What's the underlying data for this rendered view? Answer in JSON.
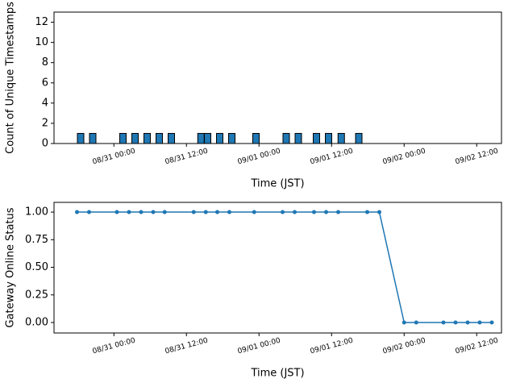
{
  "chart_data": [
    {
      "type": "bar",
      "ylabel": "Count of Unique Timestamps",
      "xlabel": "Time (JST)",
      "color": "#1f77b4",
      "x": [
        -5.5,
        -3.5,
        1.5,
        3.5,
        5.5,
        7.5,
        9.5,
        14.4,
        15.5,
        17.5,
        19.5,
        23.5,
        28.5,
        30.5,
        33.5,
        35.5,
        37.6,
        40.5
      ],
      "values": [
        1,
        1,
        1,
        1,
        1,
        1,
        1,
        1,
        1,
        1,
        1,
        1,
        1,
        1,
        1,
        1,
        1,
        1
      ],
      "xlim": [
        -9.9,
        64.1
      ],
      "xticks": [
        {
          "value": 0,
          "label": "08/31 00:00"
        },
        {
          "value": 12,
          "label": "08/31 12:00"
        },
        {
          "value": 24,
          "label": "09/01 00:00"
        },
        {
          "value": 36,
          "label": "09/01 12:00"
        },
        {
          "value": 48,
          "label": "09/02 00:00"
        },
        {
          "value": 60,
          "label": "09/02 12:00"
        }
      ],
      "ylim": [
        0,
        13
      ],
      "yticks": [
        0,
        2,
        4,
        6,
        8,
        10,
        12
      ]
    },
    {
      "type": "line",
      "ylabel": "Gateway Online Status",
      "xlabel": "Time (JST)",
      "color": "#1f77b4",
      "x": [
        -6.1,
        -4.1,
        0.5,
        2.5,
        4.5,
        6.5,
        8.4,
        13.2,
        15.2,
        17.1,
        19.1,
        23.2,
        27.9,
        29.9,
        33.1,
        35.1,
        37.1,
        41.9,
        43.9,
        48,
        50,
        54.5,
        56.5,
        58.5,
        60.5,
        62.5
      ],
      "values": [
        1,
        1,
        1,
        1,
        1,
        1,
        1,
        1,
        1,
        1,
        1,
        1,
        1,
        1,
        1,
        1,
        1,
        1,
        1,
        0,
        0,
        0,
        0,
        0,
        0,
        0
      ],
      "xlim": [
        -9.9,
        64.1
      ],
      "xticks": [
        {
          "value": 0,
          "label": "08/31 00:00"
        },
        {
          "value": 12,
          "label": "08/31 12:00"
        },
        {
          "value": 24,
          "label": "09/01 00:00"
        },
        {
          "value": 36,
          "label": "09/01 12:00"
        },
        {
          "value": 48,
          "label": "09/02 00:00"
        },
        {
          "value": 60,
          "label": "09/02 12:00"
        }
      ],
      "ylim": [
        -0.095,
        1.088
      ],
      "yticks": [
        {
          "value": 0,
          "label": "0.00"
        },
        {
          "value": 0.25,
          "label": "0.25"
        },
        {
          "value": 0.5,
          "label": "0.50"
        },
        {
          "value": 0.75,
          "label": "0.75"
        },
        {
          "value": 1,
          "label": "1.00"
        }
      ]
    }
  ]
}
